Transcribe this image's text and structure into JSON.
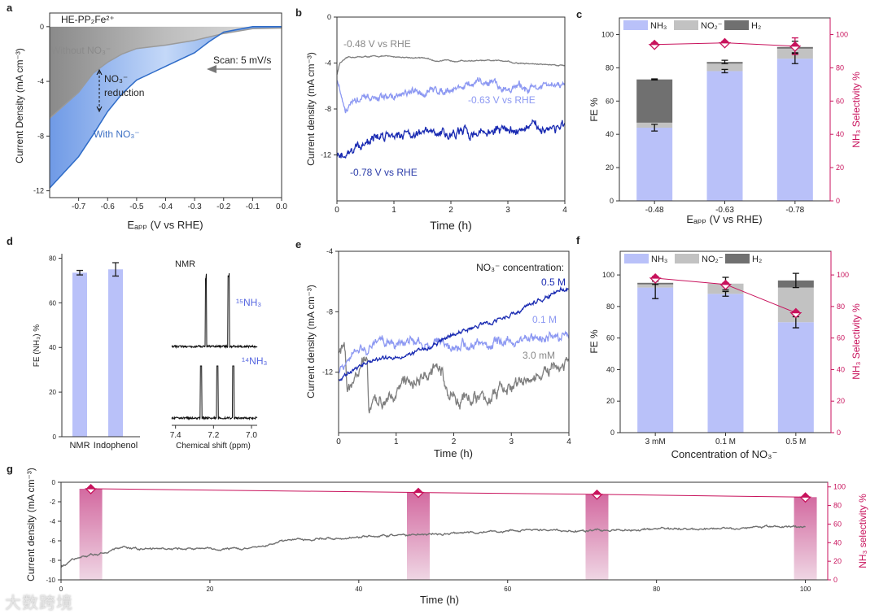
{
  "panel_letters": [
    "a",
    "b",
    "c",
    "d",
    "e",
    "f",
    "g"
  ],
  "watermark": "大数跨境",
  "colors": {
    "nh3": "#b9c1f9",
    "no2": "#c2c2c2",
    "h2": "#707070",
    "selectivity": "#c8125c",
    "gray_line": "#7f7f7f",
    "light_blue": "#8c98f2",
    "dark_blue": "#1a2bb2",
    "with_no3": "#3d70c4"
  },
  "chart_data": [
    {
      "panel": "a",
      "type": "area",
      "title": "HE-PP₂Fe²⁺",
      "xlabel": "Eₐₚₚ (V vs RHE)",
      "ylabel": "Current Density (mA cm⁻³)",
      "xlim": [
        -0.8,
        0
      ],
      "ylim": [
        -12.5,
        1
      ],
      "xticks": [
        "-0.7",
        "-0.6",
        "-0.5",
        "-0.4",
        "-0.3",
        "-0.2",
        "-0.1",
        "0.0"
      ],
      "yticks": [
        "0",
        "-4",
        "-8",
        "-12"
      ],
      "series": [
        {
          "name": "Without NO₃⁻",
          "x": [
            -0.8,
            -0.7,
            -0.65,
            -0.6,
            -0.55,
            -0.5,
            -0.4,
            -0.3,
            -0.2,
            -0.1,
            0
          ],
          "y": [
            -6.7,
            -4.8,
            -3.4,
            -2.6,
            -2.0,
            -1.6,
            -1.35,
            -1.0,
            -0.5,
            -0.15,
            -0.1
          ]
        },
        {
          "name": "With NO₃⁻",
          "x": [
            -0.8,
            -0.7,
            -0.65,
            -0.6,
            -0.55,
            -0.5,
            -0.45,
            -0.4,
            -0.3,
            -0.25,
            -0.2,
            -0.1,
            0
          ],
          "y": [
            -11.8,
            -9.5,
            -7.9,
            -6.2,
            -4.9,
            -3.9,
            -3.4,
            -2.9,
            -1.9,
            -1.1,
            -0.4,
            0,
            0
          ]
        }
      ],
      "annotations": {
        "without": "Without NO₃⁻",
        "with": "With NO₃⁻",
        "reduction_1": "NO₃⁻",
        "reduction_2": "reduction",
        "scan": "Scan: 5 mV/s"
      }
    },
    {
      "panel": "b",
      "type": "line",
      "xlabel": "Time (h)",
      "ylabel": "Current density (mA cm⁻³)",
      "xlim": [
        0,
        4
      ],
      "ylim": [
        -16,
        0
      ],
      "xticks": [
        "0",
        "1",
        "2",
        "3",
        "4"
      ],
      "yticks": [
        "0",
        "-4",
        "-8",
        "-12"
      ],
      "series": [
        {
          "name": "-0.48 V vs RHE",
          "noise": 0.05,
          "x": [
            0,
            0.05,
            0.2,
            0.8,
            1.6,
            1.7,
            3,
            3.1,
            4
          ],
          "y": [
            -5,
            -4,
            -3.5,
            -3.4,
            -3.6,
            -3.8,
            -3.8,
            -4.0,
            -4.2
          ]
        },
        {
          "name": "-0.63 V vs RHE",
          "noise": 0.35,
          "x": [
            0,
            0.15,
            0.3,
            1,
            2,
            2.8,
            2.85,
            4
          ],
          "y": [
            -5.5,
            -8.0,
            -7.3,
            -6.9,
            -6.2,
            -5.6,
            -6.2,
            -6.0
          ]
        },
        {
          "name": "-0.78 V vs RHE",
          "noise": 0.45,
          "x": [
            0,
            0.1,
            0.5,
            1,
            2,
            3,
            4
          ],
          "y": [
            -12.5,
            -12,
            -10.8,
            -10,
            -10.2,
            -9.8,
            -9.5
          ]
        }
      ]
    },
    {
      "panel": "c",
      "type": "bar",
      "xlabel": "Eₐₚₚ (V vs RHE)",
      "ylabel": "FE %",
      "ylabel_right": "NH₃ Selectivity %",
      "ylim": [
        0,
        110
      ],
      "ylim_right": [
        0,
        110
      ],
      "categories": [
        "-0.48",
        "-0.63",
        "-0.78"
      ],
      "yticks": [
        "0",
        "20",
        "40",
        "60",
        "80",
        "100"
      ],
      "yticks_right": [
        "0",
        "20",
        "40",
        "60",
        "80",
        "100"
      ],
      "series": [
        {
          "name": "NH₃",
          "values": [
            44,
            78,
            85.5
          ]
        },
        {
          "name": "NO₂⁻",
          "values": [
            3,
            4.5,
            6
          ]
        },
        {
          "name": "H₂",
          "values": [
            26,
            1,
            1
          ]
        }
      ],
      "nh3_error": [
        2,
        1,
        3
      ],
      "total_error": [
        0.3,
        1,
        3.5
      ],
      "selectivity": {
        "name": "NH₃ Selectivity",
        "values": [
          94,
          95,
          93
        ],
        "error": [
          1,
          1,
          5
        ]
      }
    },
    {
      "panel": "d",
      "type": "bar",
      "ylabel": "FE (NH₃) %",
      "ylim": [
        0,
        82
      ],
      "categories": [
        "NMR",
        "Indophenol"
      ],
      "yticks": [
        "0",
        "20",
        "40",
        "60",
        "80"
      ],
      "values": [
        73.5,
        75
      ],
      "error": [
        1,
        3
      ],
      "nmr": {
        "title": "NMR",
        "xlabel": "Chemical shift (ppm)",
        "xlim": [
          7.42,
          6.97
        ],
        "xticks": [
          "7.4",
          "7.2",
          "7.0"
        ],
        "spectra": [
          {
            "name": "¹⁵NH₃",
            "peaks": [
              7.24,
              7.12
            ]
          },
          {
            "name": "¹⁴NH₃",
            "peaks": [
              7.265,
              7.18,
              7.095
            ]
          }
        ]
      }
    },
    {
      "panel": "e",
      "type": "line",
      "xlabel": "Time (h)",
      "ylabel": "Current density (mA cm⁻³)",
      "xlim": [
        0,
        4
      ],
      "ylim": [
        -16,
        -4
      ],
      "xticks": [
        "0",
        "1",
        "2",
        "3",
        "4"
      ],
      "yticks": [
        "-4",
        "-8",
        "-12"
      ],
      "legend_title": "NO₃⁻ concentration:",
      "series": [
        {
          "name": "3.0 mM",
          "noise": 0.45,
          "x": [
            0,
            0.1,
            0.15,
            0.5,
            0.52,
            1,
            1.8,
            1.85,
            2.5,
            3,
            4
          ],
          "y": [
            -11,
            -10.5,
            -13.5,
            -11,
            -14.5,
            -13,
            -11.8,
            -13.5,
            -13.8,
            -13,
            -11.5
          ]
        },
        {
          "name": "0.1 M",
          "noise": 0.35,
          "x": [
            0,
            0.3,
            0.7,
            1.5,
            2,
            3,
            4
          ],
          "y": [
            -12,
            -10.8,
            -10,
            -10,
            -10.3,
            -10,
            -9.5
          ]
        },
        {
          "name": "0.5 M",
          "noise": 0.15,
          "x": [
            0,
            0.5,
            1,
            1.5,
            2,
            3,
            4
          ],
          "y": [
            -12.5,
            -11.3,
            -11,
            -10.5,
            -9.5,
            -8.2,
            -6.3
          ]
        }
      ]
    },
    {
      "panel": "f",
      "type": "bar",
      "xlabel": "Concentration of NO₃⁻",
      "ylabel": "FE %",
      "ylabel_right": "NH₃ Selectivity %",
      "ylim": [
        0,
        115
      ],
      "ylim_right": [
        0,
        115
      ],
      "categories": [
        "3 mM",
        "0.1 M",
        "0.5 M"
      ],
      "yticks": [
        "0",
        "20",
        "40",
        "60",
        "80",
        "100"
      ],
      "yticks_right": [
        "0",
        "20",
        "40",
        "60",
        "80",
        "100"
      ],
      "series": [
        {
          "name": "NH₃",
          "values": [
            92,
            88,
            70
          ]
        },
        {
          "name": "NO₂⁻",
          "values": [
            2,
            6.5,
            22
          ]
        },
        {
          "name": "H₂",
          "values": [
            1,
            0,
            4.5
          ]
        }
      ],
      "nh3_error": [
        7,
        1.5,
        3.5
      ],
      "total_error": [
        1,
        4,
        4.5
      ],
      "selectivity": {
        "name": "NH₃ Selectivity",
        "values": [
          98,
          94,
          76
        ],
        "error": [
          1,
          1,
          1
        ]
      }
    },
    {
      "panel": "g",
      "type": "line",
      "xlabel": "Time (h)",
      "ylabel": "Current density (mA cm⁻³)",
      "ylabel_right": "NH₃ selectivity %",
      "xlim": [
        0,
        103
      ],
      "ylim": [
        -10,
        0
      ],
      "ylim_right": [
        0,
        105
      ],
      "xticks": [
        "0",
        "20",
        "40",
        "60",
        "80",
        "100"
      ],
      "yticks": [
        "0",
        "-2",
        "-4",
        "-6",
        "-8",
        "-10"
      ],
      "yticks_right": [
        "0",
        "20",
        "40",
        "60",
        "80",
        "100"
      ],
      "series": [
        {
          "name": "Current density",
          "noise": 0.12,
          "x": [
            0,
            2,
            8,
            25,
            30,
            40,
            50,
            63,
            70,
            80,
            100
          ],
          "y": [
            -8.7,
            -7.8,
            -6.8,
            -6.8,
            -6.0,
            -5.6,
            -5.3,
            -4.9,
            -5.0,
            -4.8,
            -4.5
          ]
        }
      ],
      "selectivity": {
        "time": [
          4,
          48,
          72,
          100
        ],
        "values": [
          98,
          94,
          92,
          89
        ]
      }
    }
  ]
}
